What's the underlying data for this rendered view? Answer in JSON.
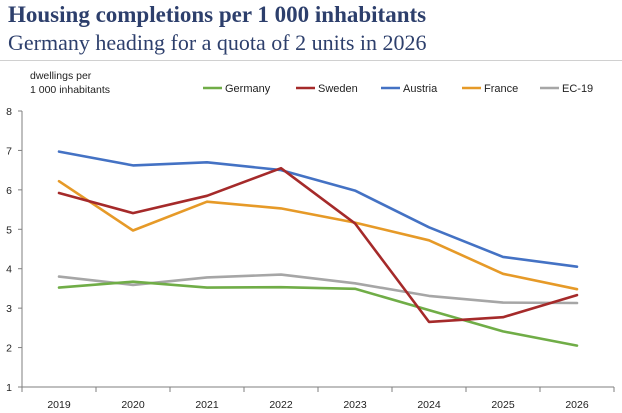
{
  "chart_data": {
    "type": "line",
    "title": "Housing completions per 1 000 inhabitants",
    "subtitle": "Germany heading for a quota of 2 units in 2026",
    "ylabel_line1": "dwellings per",
    "ylabel_line2": "1 000 inhabitants",
    "xlabel": "",
    "x": [
      "2019",
      "2020",
      "2021",
      "2022",
      "2023",
      "2024",
      "2025",
      "2026"
    ],
    "ylim": [
      1,
      8
    ],
    "yticks": [
      "1",
      "2",
      "3",
      "4",
      "5",
      "6",
      "7",
      "8"
    ],
    "grid": false,
    "legend_position": "top",
    "series": [
      {
        "name": "Germany",
        "color": "#70ad47",
        "values": [
          3.52,
          3.67,
          3.52,
          3.53,
          3.49,
          2.95,
          2.41,
          2.05
        ]
      },
      {
        "name": "Sweden",
        "color": "#a52a2a",
        "values": [
          5.92,
          5.41,
          5.85,
          6.55,
          5.15,
          2.65,
          2.77,
          3.33
        ]
      },
      {
        "name": "Austria",
        "color": "#4472c4",
        "values": [
          6.97,
          6.62,
          6.7,
          6.5,
          5.98,
          5.05,
          4.3,
          4.05
        ]
      },
      {
        "name": "France",
        "color": "#e69a28",
        "values": [
          6.22,
          4.97,
          5.7,
          5.53,
          5.17,
          4.72,
          3.87,
          3.48
        ]
      },
      {
        "name": "EC-19",
        "color": "#a6a6a6",
        "values": [
          3.8,
          3.59,
          3.78,
          3.85,
          3.63,
          3.31,
          3.14,
          3.13
        ]
      }
    ]
  }
}
